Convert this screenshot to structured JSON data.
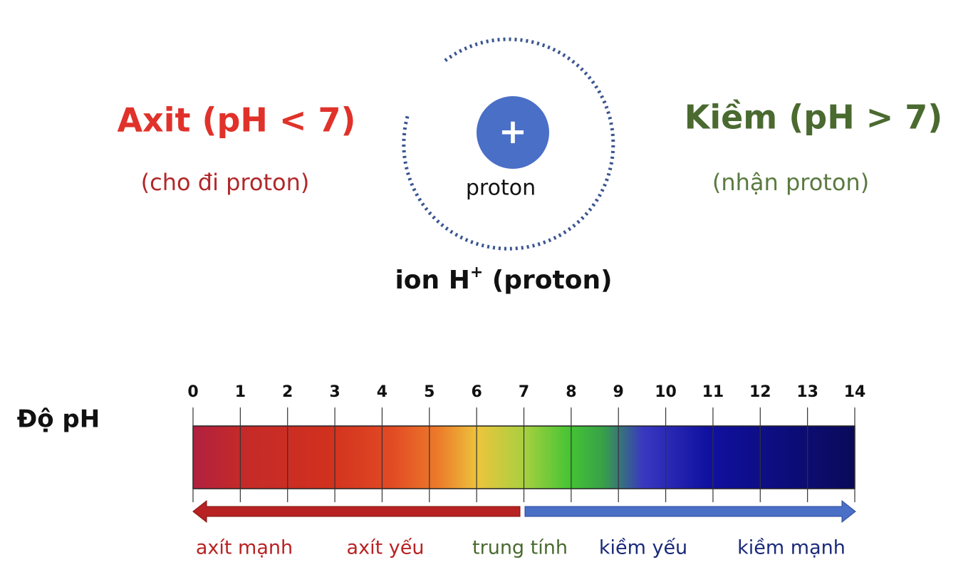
{
  "acid": {
    "title": "Axit (pH < 7)",
    "subtitle": "(cho đi proton)"
  },
  "base": {
    "title": "Kiềm (pH > 7)",
    "subtitle": "(nhận proton)"
  },
  "ion": {
    "symbol": "+",
    "label": "proton",
    "caption": {
      "prefix": "ion H",
      "sup": "+",
      "suffix": " (proton)"
    }
  },
  "scale": {
    "title": "Độ pH",
    "ticks": [
      0,
      1,
      2,
      3,
      4,
      5,
      6,
      7,
      8,
      9,
      10,
      11,
      12,
      13,
      14
    ],
    "labels": [
      "axít mạnh",
      "axít yếu",
      "trung tính",
      "kiềm yếu",
      "kiềm mạnh"
    ]
  }
}
